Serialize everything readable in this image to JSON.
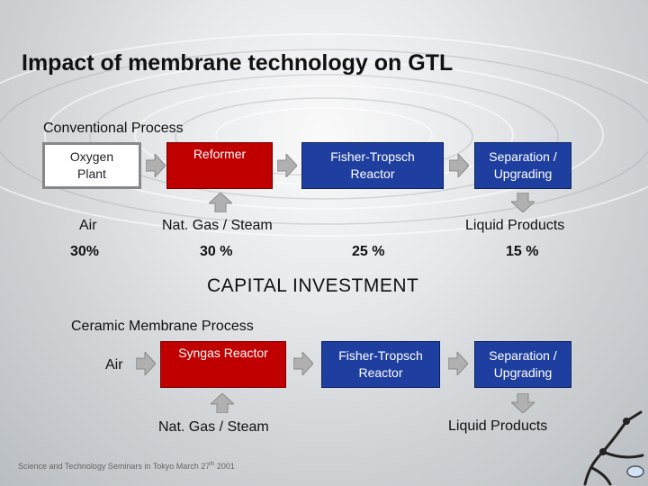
{
  "title": "Impact of membrane technology on GTL",
  "conventional": {
    "heading": "Conventional Process",
    "boxes": {
      "oxygen_plant": "Oxygen\nPlant",
      "reformer": "Reformer",
      "fischer_tropsch": "Fisher-Tropsch\nReactor",
      "separation": "Separation /\nUpgrading"
    },
    "inputs": {
      "air": "Air",
      "gas_steam": "Nat. Gas / Steam",
      "liquid_products": "Liquid Products"
    },
    "percentages": {
      "oxygen_plant": "30%",
      "reformer": "30 %",
      "fischer_tropsch": "25 %",
      "separation": "15 %"
    }
  },
  "capital_label": "CAPITAL INVESTMENT",
  "membrane": {
    "heading": "Ceramic Membrane Process",
    "inputs": {
      "air": "Air",
      "gas_steam": "Nat. Gas / Steam",
      "liquid_products": "Liquid Products"
    },
    "boxes": {
      "syngas_reactor": "Syngas Reactor",
      "fischer_tropsch": "Fisher-Tropsch\nReactor",
      "separation": "Separation /\nUpgrading"
    }
  },
  "footer": {
    "text": "Science and Technology Seminars in Tokyo March 27",
    "superscript": "th",
    "year": " 2001"
  },
  "colors": {
    "blue_box": "#1f3fa0",
    "red_box": "#c00000",
    "arrow": "#b0b0b0"
  }
}
